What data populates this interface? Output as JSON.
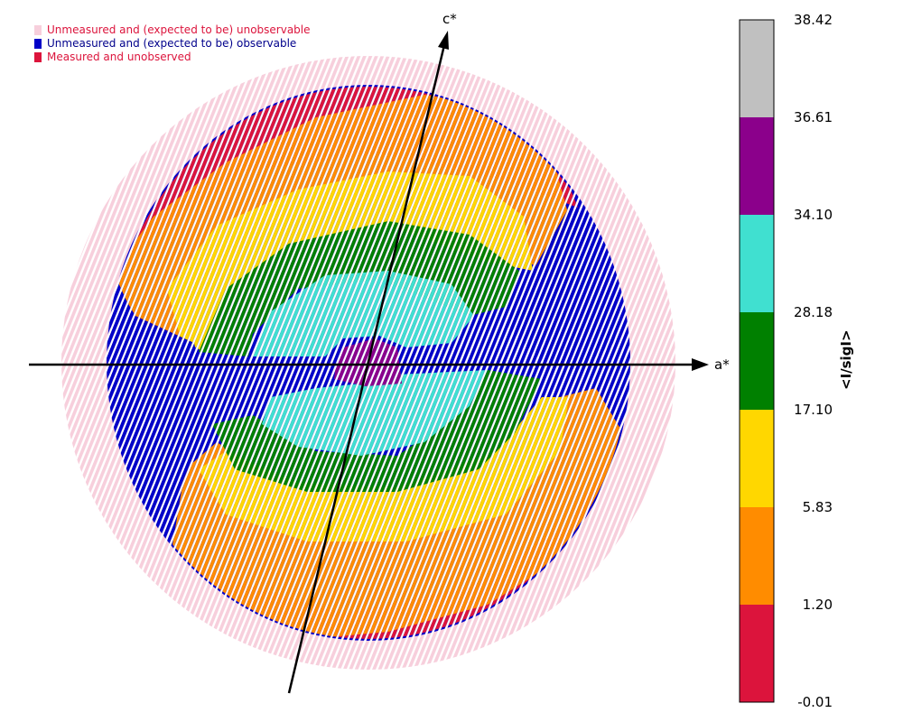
{
  "colors": {
    "unobservable": "#f7cfdc",
    "observable": "#0000c8",
    "unobserved": "#dc143c",
    "axis": "#000000"
  },
  "legend": [
    {
      "label": "Unmeasured and (expected to be) unobservable",
      "color": "#f7cfdc",
      "text_color": "#dc143c"
    },
    {
      "label": "Unmeasured and (expected to be) observable",
      "color": "#0000c8",
      "text_color": "#00008b"
    },
    {
      "label": "Measured and unobserved",
      "color": "#dc143c",
      "text_color": "#dc143c"
    }
  ],
  "axes": {
    "x_label": "a*",
    "y_label": "c*"
  },
  "chart_data": {
    "type": "heatmap",
    "title": "",
    "axes": [
      "a*",
      "c*"
    ],
    "colorbar": {
      "label": "<I/sigI>",
      "ticks": [
        "38.42",
        "36.61",
        "34.10",
        "28.18",
        "17.10",
        "5.83",
        "1.20",
        "-0.01"
      ],
      "bins": [
        {
          "from": -0.01,
          "to": 1.2,
          "color": "#dc143c"
        },
        {
          "from": 1.2,
          "to": 5.83,
          "color": "#ff8c00"
        },
        {
          "from": 5.83,
          "to": 17.1,
          "color": "#ffd700"
        },
        {
          "from": 17.1,
          "to": 28.18,
          "color": "#008000"
        },
        {
          "from": 28.18,
          "to": 34.1,
          "color": "#40e0d0"
        },
        {
          "from": 34.1,
          "to": 36.61,
          "color": "#8b008b"
        },
        {
          "from": 36.61,
          "to": 38.42,
          "color": "#c0c0c0"
        }
      ]
    }
  }
}
